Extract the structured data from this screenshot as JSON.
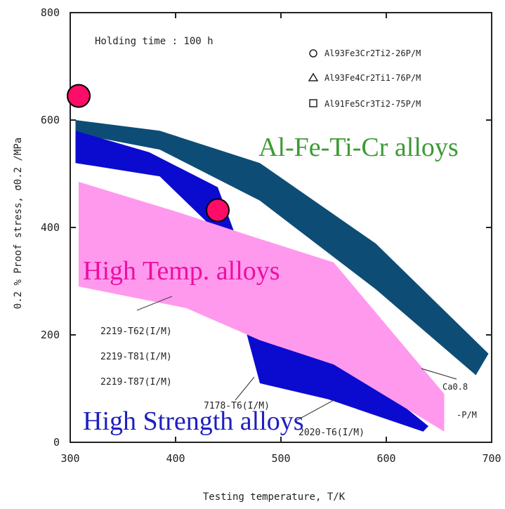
{
  "chart_data": {
    "type": "area",
    "title": "Holding time : 100 h",
    "xlabel": "Testing temperature, T/K",
    "ylabel": "0.2 % Proof stress, σ0.2 /MPa",
    "xlim": [
      300,
      700
    ],
    "ylim": [
      0,
      800
    ],
    "x_ticks": [
      "300",
      "400",
      "500",
      "600",
      "700"
    ],
    "y_ticks": [
      "0",
      "200",
      "400",
      "600",
      "800"
    ],
    "grid": false,
    "legend": [
      {
        "marker": "circle",
        "label": "Al93Fe3Cr2Ti2-26P/M"
      },
      {
        "marker": "triangle",
        "label": "Al93Fe4Cr2Ti1-76P/M"
      },
      {
        "marker": "square",
        "label": "Al91Fe5Cr3Ti2-75P/M"
      }
    ],
    "regions": [
      {
        "name": "Al-Fe-Ti-Cr alloys",
        "color": "#0d4d75",
        "upper": [
          [
            305,
            600
          ],
          [
            385,
            580
          ],
          [
            480,
            520
          ],
          [
            590,
            370
          ],
          [
            697,
            165
          ]
        ],
        "lower": [
          [
            305,
            575
          ],
          [
            385,
            545
          ],
          [
            480,
            450
          ],
          [
            590,
            285
          ],
          [
            685,
            125
          ]
        ]
      },
      {
        "name": "High Strength alloys",
        "color": "#0b0bd0",
        "upper": [
          [
            305,
            580
          ],
          [
            375,
            540
          ],
          [
            440,
            475
          ],
          [
            485,
            235
          ],
          [
            545,
            180
          ],
          [
            640,
            30
          ]
        ],
        "lower": [
          [
            305,
            520
          ],
          [
            385,
            495
          ],
          [
            435,
            400
          ],
          [
            450,
            330
          ],
          [
            480,
            110
          ],
          [
            545,
            80
          ],
          [
            635,
            20
          ]
        ]
      },
      {
        "name": "High Temp. alloys",
        "color": "#ff99ee",
        "upper": [
          [
            308,
            485
          ],
          [
            400,
            430
          ],
          [
            470,
            385
          ],
          [
            550,
            335
          ],
          [
            655,
            90
          ]
        ],
        "lower": [
          [
            308,
            290
          ],
          [
            410,
            250
          ],
          [
            480,
            190
          ],
          [
            550,
            145
          ],
          [
            655,
            20
          ]
        ]
      }
    ],
    "highlight_points": [
      {
        "x": 308,
        "y": 645
      },
      {
        "x": 440,
        "y": 432
      }
    ],
    "highlight_color": "#ff0b68",
    "annotations": [
      "2219-T62(I/M)",
      "2219-T81(I/M)",
      "2219-T87(I/M)",
      "7178-T6(I/M)",
      "2020-T6(I/M)",
      "Ca0.8",
      "-P/M"
    ]
  }
}
